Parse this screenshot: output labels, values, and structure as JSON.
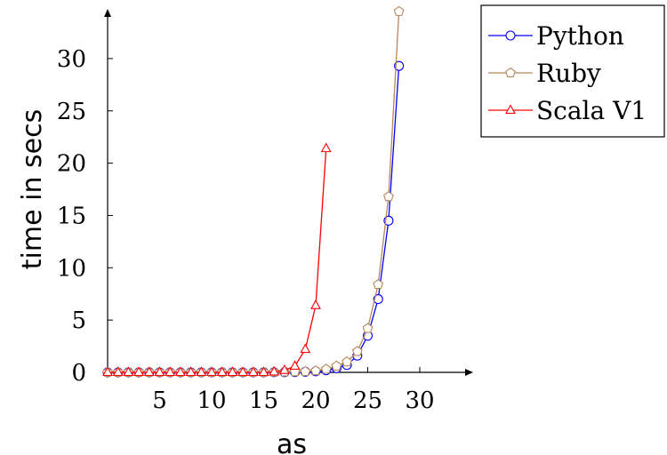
{
  "chart_data": {
    "type": "line",
    "xlabel": "as",
    "ylabel": "time in secs",
    "xlim": [
      0,
      30
    ],
    "ylim": [
      0,
      34
    ],
    "x_ticks": [
      "5",
      "10",
      "15",
      "20",
      "25",
      "30"
    ],
    "y_ticks": [
      "0",
      "5",
      "10",
      "15",
      "20",
      "25",
      "30"
    ],
    "legend_position": "top-right",
    "grid": false,
    "series": [
      {
        "name": "Python",
        "color": "#0000ff",
        "marker": "circle",
        "x": [
          0,
          1,
          2,
          3,
          4,
          5,
          6,
          7,
          8,
          9,
          10,
          11,
          12,
          13,
          14,
          15,
          16,
          17,
          18,
          19,
          20,
          21,
          22,
          23,
          24,
          25,
          26,
          27,
          28
        ],
        "y": [
          0,
          0,
          0,
          0,
          0,
          0,
          0,
          0,
          0,
          0,
          0,
          0,
          0,
          0,
          0,
          0,
          0.01,
          0.02,
          0.03,
          0.06,
          0.1,
          0.2,
          0.4,
          0.7,
          1.6,
          3.5,
          7.0,
          14.5,
          29.3
        ]
      },
      {
        "name": "Ruby",
        "color": "#b8865b",
        "marker": "pentagon",
        "x": [
          0,
          1,
          2,
          3,
          4,
          5,
          6,
          7,
          8,
          9,
          10,
          11,
          12,
          13,
          14,
          15,
          16,
          17,
          18,
          19,
          20,
          21,
          22,
          23,
          24,
          25,
          26,
          27,
          28
        ],
        "y": [
          0,
          0,
          0,
          0,
          0,
          0,
          0,
          0,
          0,
          0,
          0,
          0,
          0,
          0,
          0,
          0,
          0.02,
          0.03,
          0.05,
          0.08,
          0.15,
          0.3,
          0.6,
          1.0,
          2.0,
          4.2,
          8.4,
          16.8,
          34.5
        ]
      },
      {
        "name": "Scala V1",
        "color": "#ff0000",
        "marker": "triangle",
        "x": [
          0,
          1,
          2,
          3,
          4,
          5,
          6,
          7,
          8,
          9,
          10,
          11,
          12,
          13,
          14,
          15,
          16,
          17,
          18,
          19,
          20,
          21
        ],
        "y": [
          0,
          0,
          0,
          0,
          0,
          0,
          0,
          0,
          0,
          0,
          0,
          0,
          0,
          0,
          0,
          0,
          0.05,
          0.2,
          0.6,
          2.2,
          6.4,
          21.4
        ]
      }
    ]
  }
}
